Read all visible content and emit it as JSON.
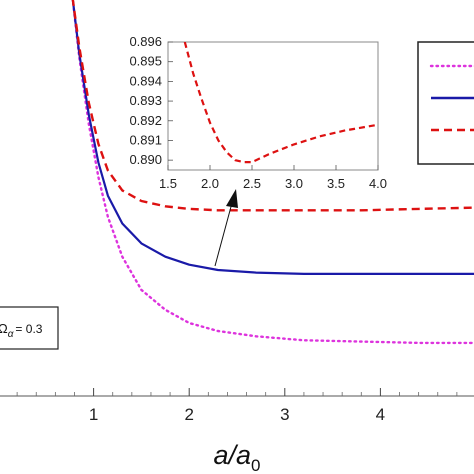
{
  "chart_data": [
    {
      "type": "line",
      "xlabel_base": "a/a",
      "xlabel_sub": "0",
      "ylabel": "",
      "xlim": [
        0,
        5
      ],
      "ylim": [
        0.7,
        1.0
      ],
      "xticks": [
        "1",
        "2",
        "3",
        "4"
      ],
      "grid": false,
      "legend": "top-right",
      "annotation": {
        "label": "Ω",
        "sub": "α",
        "value": "= 0.3"
      },
      "series": [
        {
          "style": "dotted",
          "color": "#dd33dd",
          "x": [
            0.78,
            0.85,
            0.95,
            1.05,
            1.15,
            1.3,
            1.5,
            1.75,
            2.0,
            2.3,
            2.7,
            3.2,
            3.8,
            4.4,
            5.0
          ],
          "y": [
            1.0,
            0.955,
            0.905,
            0.865,
            0.835,
            0.805,
            0.78,
            0.765,
            0.755,
            0.749,
            0.745,
            0.742,
            0.741,
            0.74,
            0.74
          ]
        },
        {
          "style": "solid",
          "color": "#1a1aa8",
          "x": [
            0.78,
            0.85,
            0.95,
            1.05,
            1.15,
            1.3,
            1.5,
            1.75,
            2.0,
            2.3,
            2.7,
            3.2,
            3.8,
            4.4,
            5.0
          ],
          "y": [
            1.0,
            0.958,
            0.912,
            0.876,
            0.851,
            0.83,
            0.815,
            0.805,
            0.799,
            0.795,
            0.793,
            0.792,
            0.792,
            0.792,
            0.792
          ]
        },
        {
          "style": "dashed",
          "color": "#dd1111",
          "x": [
            0.78,
            0.85,
            0.95,
            1.05,
            1.15,
            1.3,
            1.5,
            1.75,
            2.0,
            2.3,
            2.7,
            3.2,
            3.8,
            4.4,
            5.0
          ],
          "y": [
            1.0,
            0.963,
            0.921,
            0.89,
            0.87,
            0.855,
            0.847,
            0.843,
            0.841,
            0.84,
            0.84,
            0.84,
            0.84,
            0.841,
            0.842
          ]
        }
      ]
    },
    {
      "type": "line",
      "xlim": [
        1.5,
        4.0
      ],
      "ylim": [
        0.8895,
        0.896
      ],
      "xticks": [
        "1.5",
        "2.0",
        "2.5",
        "3.0",
        "3.5",
        "4.0"
      ],
      "yticks": [
        "0.890",
        "0.891",
        "0.892",
        "0.893",
        "0.894",
        "0.895",
        "0.896"
      ],
      "series": [
        {
          "style": "dashed",
          "color": "#dd1111",
          "x": [
            1.7,
            1.8,
            1.9,
            2.0,
            2.1,
            2.2,
            2.3,
            2.4,
            2.5,
            2.7,
            3.0,
            3.3,
            3.6,
            4.0
          ],
          "y": [
            0.896,
            0.8944,
            0.8931,
            0.8919,
            0.891,
            0.8904,
            0.89,
            0.8899,
            0.8899,
            0.8903,
            0.8908,
            0.8912,
            0.8915,
            0.8918
          ]
        }
      ]
    }
  ]
}
